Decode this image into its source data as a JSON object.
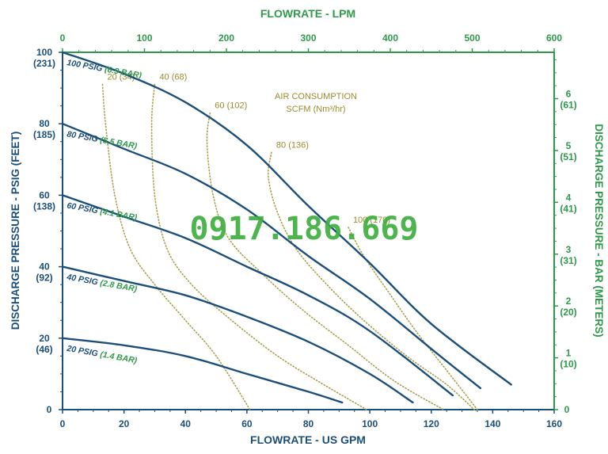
{
  "chart_data": {
    "type": "line",
    "title": "",
    "xlabel": "FLOWRATE - US GPM",
    "x2label": "FLOWRATE - LPM",
    "ylabel": "DISCHARGE PRESSURE - PSIG (FEET)",
    "y2label": "DISCHARGE PRESSURE - BAR (METERS)",
    "xlim": [
      0,
      160
    ],
    "ylim": [
      0,
      100
    ],
    "x2lim": [
      0,
      600
    ],
    "y2lim": [
      0,
      6.895
    ],
    "grid": false,
    "x_ticks": [
      "0",
      "20",
      "40",
      "60",
      "80",
      "100",
      "120",
      "140",
      "160"
    ],
    "x2_ticks": [
      "0",
      "100",
      "200",
      "300",
      "400",
      "500",
      "600"
    ],
    "y_ticks": [
      {
        "value": 0,
        "main": "0",
        "sub": ""
      },
      {
        "value": 20,
        "main": "20",
        "sub": "(46)"
      },
      {
        "value": 40,
        "main": "40",
        "sub": "(92)"
      },
      {
        "value": 60,
        "main": "60",
        "sub": "(138)"
      },
      {
        "value": 80,
        "main": "80",
        "sub": "(185)"
      },
      {
        "value": 100,
        "main": "100",
        "sub": "(231)"
      }
    ],
    "y2_ticks": [
      {
        "value": 0,
        "main": "0",
        "sub": ""
      },
      {
        "value": 1,
        "main": "1",
        "sub": "(10)"
      },
      {
        "value": 2,
        "main": "2",
        "sub": "(20)"
      },
      {
        "value": 3,
        "main": "3",
        "sub": "(31)"
      },
      {
        "value": 4,
        "main": "4",
        "sub": "(41)"
      },
      {
        "value": 5,
        "main": "5",
        "sub": "(51)"
      },
      {
        "value": 6,
        "main": "6",
        "sub": "(61)"
      }
    ],
    "series": [
      {
        "name": "100 PSIG",
        "name_metric": "(6.9 BAR)",
        "x": [
          0,
          20,
          40,
          60,
          80,
          100,
          120,
          146
        ],
        "y": [
          100,
          94,
          86,
          74,
          57,
          41,
          24,
          7
        ]
      },
      {
        "name": "80 PSIG",
        "name_metric": "(5.5 BAR)",
        "x": [
          0,
          20,
          40,
          60,
          80,
          100,
          120,
          136
        ],
        "y": [
          80,
          73,
          66,
          56,
          43,
          31,
          17,
          6
        ]
      },
      {
        "name": "60 PSIG",
        "name_metric": "(4.1 BAR)",
        "x": [
          0,
          20,
          40,
          60,
          80,
          100,
          127
        ],
        "y": [
          60,
          54,
          48,
          40,
          32,
          22,
          4
        ]
      },
      {
        "name": "40 PSIG",
        "name_metric": "(2.8 BAR)",
        "x": [
          0,
          20,
          40,
          60,
          80,
          100,
          114
        ],
        "y": [
          40,
          36,
          32,
          26,
          19,
          10,
          2
        ]
      },
      {
        "name": "20 PSIG",
        "name_metric": "(1.4 BAR)",
        "x": [
          0,
          20,
          40,
          60,
          80,
          91
        ],
        "y": [
          20,
          18,
          15,
          10,
          5,
          2
        ]
      }
    ],
    "air_consumption": {
      "title": "AIR CONSUMPTION",
      "subtitle": "SCFM (Nm³/hr)",
      "lines": [
        {
          "label": "20 (34)",
          "x": [
            13,
            14,
            17,
            22,
            30,
            40,
            50,
            61
          ],
          "y": [
            91,
            80,
            60,
            45,
            35,
            25,
            15,
            0
          ]
        },
        {
          "label": "40 (68)",
          "x": [
            30,
            29,
            30,
            34,
            42,
            55,
            70,
            85,
            99
          ],
          "y": [
            91,
            80,
            60,
            45,
            35,
            25,
            15,
            7,
            0
          ]
        },
        {
          "label": "60 (102)",
          "x": [
            48,
            47,
            49,
            54,
            65,
            78,
            93,
            108,
            124
          ],
          "y": [
            83,
            75,
            60,
            48,
            38,
            28,
            18,
            8,
            0
          ]
        },
        {
          "label": "80 (136)",
          "x": [
            68,
            67,
            70,
            76,
            86,
            98,
            112,
            125,
            134
          ],
          "y": [
            72,
            65,
            55,
            45,
            35,
            25,
            15,
            7,
            0
          ]
        },
        {
          "label": "100 (170)",
          "x": [
            93,
            98,
            106,
            115,
            125,
            135
          ],
          "y": [
            51,
            43,
            33,
            22,
            11,
            0
          ]
        }
      ]
    },
    "watermark": "0917.186.669"
  },
  "colors": {
    "axis_blue": "#1b4f7a",
    "metric_green": "#2e9a49",
    "curve_blue": "#1b4f7a",
    "air_olive": "#a8a04a",
    "watermark_green": "#3fae3f"
  }
}
